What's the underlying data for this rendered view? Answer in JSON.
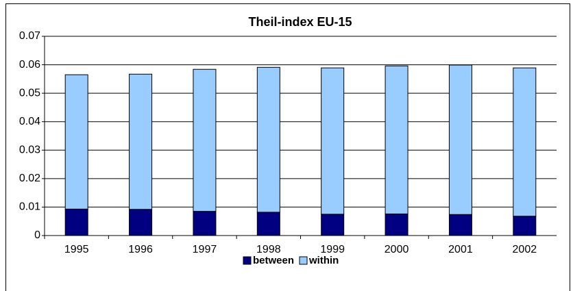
{
  "chart_data": {
    "type": "bar",
    "stacked": true,
    "title": "Theil-index EU-15",
    "categories": [
      "1995",
      "1996",
      "1997",
      "1998",
      "1999",
      "2000",
      "2001",
      "2002"
    ],
    "series": [
      {
        "name": "between",
        "color": "#000080",
        "values": [
          0.0093,
          0.0092,
          0.0085,
          0.0082,
          0.0075,
          0.0076,
          0.0074,
          0.0068
        ]
      },
      {
        "name": "within",
        "color": "#99ccff",
        "values": [
          0.0472,
          0.0475,
          0.0499,
          0.0509,
          0.0514,
          0.052,
          0.0525,
          0.0521
        ]
      }
    ],
    "ylim": [
      0,
      0.07
    ],
    "yticks": [
      0,
      0.01,
      0.02,
      0.03,
      0.04,
      0.05,
      0.06,
      0.07
    ],
    "grid": true,
    "legend": "bottom"
  }
}
